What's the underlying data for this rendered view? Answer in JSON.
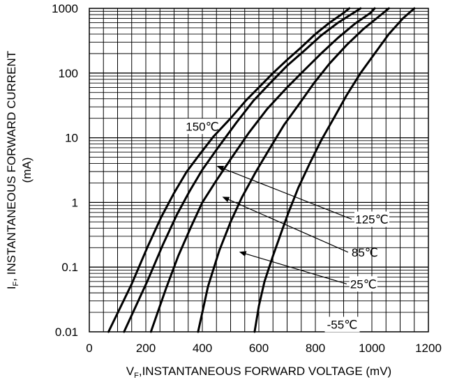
{
  "chart_data": {
    "type": "line",
    "xlabel_main": "V",
    "xlabel_sub": "F",
    "xlabel_rest": ",INSTANTANEOUS FORWARD VOLTAGE (mV)",
    "ylabel_main": "I",
    "ylabel_sub": "F",
    "ylabel_rest": ", INSTANTANEOUS FORWARD CURRENT",
    "ylabel_unit": "(mA)",
    "x_scale": "linear",
    "y_scale": "log",
    "xlim": [
      0,
      1200
    ],
    "ylim": [
      0.01,
      1000
    ],
    "x_ticks": [
      {
        "value": 0,
        "label": "0"
      },
      {
        "value": 200,
        "label": "200"
      },
      {
        "value": 400,
        "label": "400"
      },
      {
        "value": 600,
        "label": "600"
      },
      {
        "value": 800,
        "label": "800"
      },
      {
        "value": 1000,
        "label": "1000"
      },
      {
        "value": 1200,
        "label": "1200"
      }
    ],
    "y_ticks": [
      {
        "value": 0.01,
        "label": "0.01"
      },
      {
        "value": 0.1,
        "label": "0.1"
      },
      {
        "value": 1,
        "label": "1"
      },
      {
        "value": 10,
        "label": "10"
      },
      {
        "value": 100,
        "label": "100"
      },
      {
        "value": 1000,
        "label": "1000"
      }
    ],
    "grid": true,
    "series": [
      {
        "name": "150℃",
        "points": [
          [
            68,
            0.01
          ],
          [
            150,
            0.055
          ],
          [
            205,
            0.2
          ],
          [
            255,
            0.6
          ],
          [
            300,
            1.4
          ],
          [
            345,
            3.0
          ],
          [
            390,
            5.5
          ],
          [
            440,
            10.5
          ],
          [
            500,
            20
          ],
          [
            555,
            38
          ],
          [
            600,
            60
          ],
          [
            650,
            100
          ],
          [
            700,
            160
          ],
          [
            750,
            250
          ],
          [
            800,
            400
          ],
          [
            850,
            600
          ],
          [
            900,
            850
          ],
          [
            920,
            1000
          ]
        ]
      },
      {
        "name": "125℃",
        "points": [
          [
            123,
            0.01
          ],
          [
            205,
            0.06
          ],
          [
            260,
            0.22
          ],
          [
            310,
            0.65
          ],
          [
            355,
            1.5
          ],
          [
            400,
            3.2
          ],
          [
            455,
            7
          ],
          [
            520,
            17
          ],
          [
            580,
            37
          ],
          [
            640,
            70
          ],
          [
            700,
            130
          ],
          [
            760,
            220
          ],
          [
            820,
            380
          ],
          [
            880,
            600
          ],
          [
            940,
            880
          ],
          [
            960,
            1000
          ]
        ]
      },
      {
        "name": "85℃",
        "points": [
          [
            218,
            0.01
          ],
          [
            270,
            0.045
          ],
          [
            315,
            0.15
          ],
          [
            360,
            0.42
          ],
          [
            400,
            1.0
          ],
          [
            450,
            2.2
          ],
          [
            505,
            5
          ],
          [
            565,
            12
          ],
          [
            630,
            28
          ],
          [
            700,
            60
          ],
          [
            760,
            110
          ],
          [
            820,
            200
          ],
          [
            880,
            350
          ],
          [
            940,
            580
          ],
          [
            995,
            850
          ],
          [
            1010,
            1000
          ]
        ]
      },
      {
        "name": "25℃",
        "points": [
          [
            385,
            0.01
          ],
          [
            420,
            0.05
          ],
          [
            460,
            0.18
          ],
          [
            500,
            0.5
          ],
          [
            540,
            1.2
          ],
          [
            590,
            3
          ],
          [
            640,
            7
          ],
          [
            690,
            16
          ],
          [
            740,
            32
          ],
          [
            795,
            70
          ],
          [
            850,
            140
          ],
          [
            910,
            270
          ],
          [
            970,
            480
          ],
          [
            1030,
            780
          ],
          [
            1060,
            1000
          ]
        ]
      },
      {
        "name": "-55℃",
        "points": [
          [
            585,
            0.01
          ],
          [
            600,
            0.025
          ],
          [
            620,
            0.06
          ],
          [
            650,
            0.15
          ],
          [
            680,
            0.35
          ],
          [
            705,
            0.7
          ],
          [
            740,
            1.7
          ],
          [
            780,
            4
          ],
          [
            820,
            9
          ],
          [
            865,
            20
          ],
          [
            910,
            45
          ],
          [
            960,
            100
          ],
          [
            1010,
            200
          ],
          [
            1060,
            400
          ],
          [
            1110,
            700
          ],
          [
            1150,
            1000
          ]
        ]
      }
    ],
    "annotations": [
      {
        "label": "150℃",
        "x": 400,
        "y": 15,
        "boxed": true
      },
      {
        "label": "125℃",
        "x": 1000,
        "y": 0.55,
        "boxed": true,
        "arrow_to": [
          455,
          3.6
        ]
      },
      {
        "label": "85℃",
        "x": 975,
        "y": 0.17,
        "boxed": false,
        "arrow_to": [
          475,
          1.2
        ]
      },
      {
        "label": "25℃",
        "x": 970,
        "y": 0.055,
        "boxed": true,
        "arrow_to": [
          535,
          0.17
        ]
      },
      {
        "label": "-55℃",
        "x": 895,
        "y": 0.013,
        "boxed": true
      }
    ]
  }
}
